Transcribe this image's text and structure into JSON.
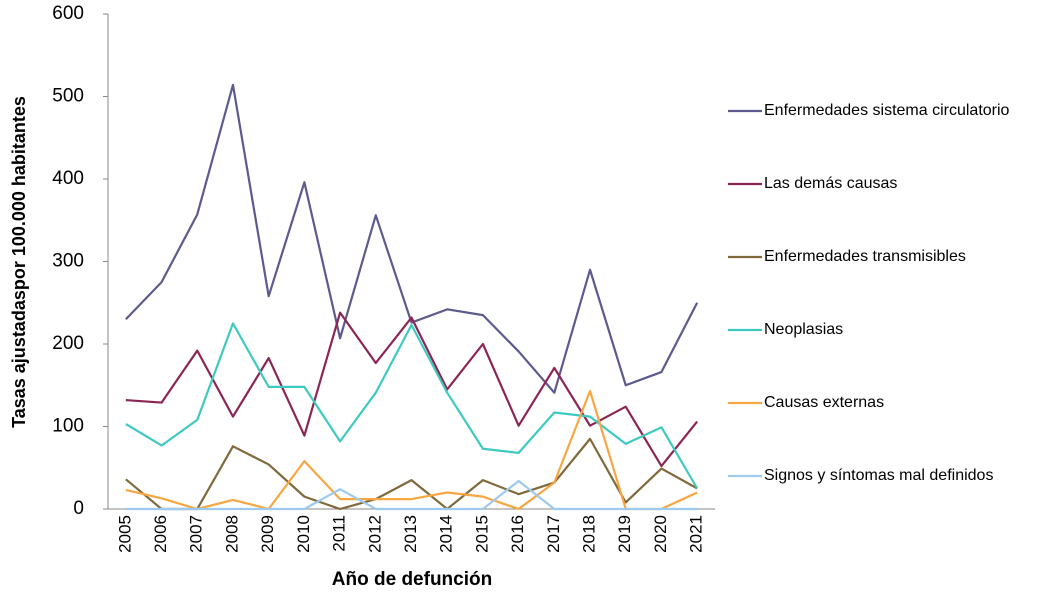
{
  "chart_data": {
    "type": "line",
    "xlabel": "Año de defunción",
    "ylabel": "Tasas ajustadaspor 100.000 habitantes",
    "categories": [
      "2005",
      "2006",
      "2007",
      "2008",
      "2009",
      "2010",
      "2011",
      "2012",
      "2013",
      "2014",
      "2015",
      "2016",
      "2017",
      "2018",
      "2019",
      "2020",
      "2021"
    ],
    "ylim": [
      0,
      600
    ],
    "yticks": [
      0,
      100,
      200,
      300,
      400,
      500,
      600
    ],
    "grid": false,
    "legend": "right",
    "series": [
      {
        "name": "Enfermedades sistema circulatorio",
        "color": "#5c5a8e",
        "values": [
          230,
          275,
          357,
          514,
          258,
          396,
          207,
          356,
          226,
          242,
          235,
          191,
          141,
          290,
          150,
          166,
          250
        ]
      },
      {
        "name": "Las demás causas",
        "color": "#8c2556",
        "values": [
          132,
          129,
          192,
          112,
          183,
          89,
          238,
          177,
          232,
          145,
          200,
          101,
          171,
          101,
          124,
          52,
          106
        ]
      },
      {
        "name": "Enfermedades transmisibles",
        "color": "#806a3c",
        "values": [
          36,
          0,
          0,
          76,
          54,
          15,
          0,
          12,
          35,
          0,
          35,
          18,
          32,
          85,
          8,
          49,
          25
        ]
      },
      {
        "name": "Neoplasias",
        "color": "#3ec9c1",
        "values": [
          103,
          77,
          108,
          225,
          148,
          148,
          82,
          141,
          223,
          141,
          73,
          68,
          117,
          112,
          79,
          99,
          25
        ]
      },
      {
        "name": "Causas externas",
        "color": "#f8a642",
        "values": [
          23,
          13,
          0,
          11,
          0,
          58,
          12,
          12,
          12,
          20,
          15,
          0,
          32,
          143,
          0,
          0,
          20
        ]
      },
      {
        "name": "Signos y síntomas mal definidos",
        "color": "#9ccaf0",
        "values": [
          0,
          0,
          0,
          0,
          0,
          0,
          24,
          0,
          0,
          0,
          0,
          34,
          0,
          0,
          0,
          0,
          0
        ]
      }
    ]
  }
}
